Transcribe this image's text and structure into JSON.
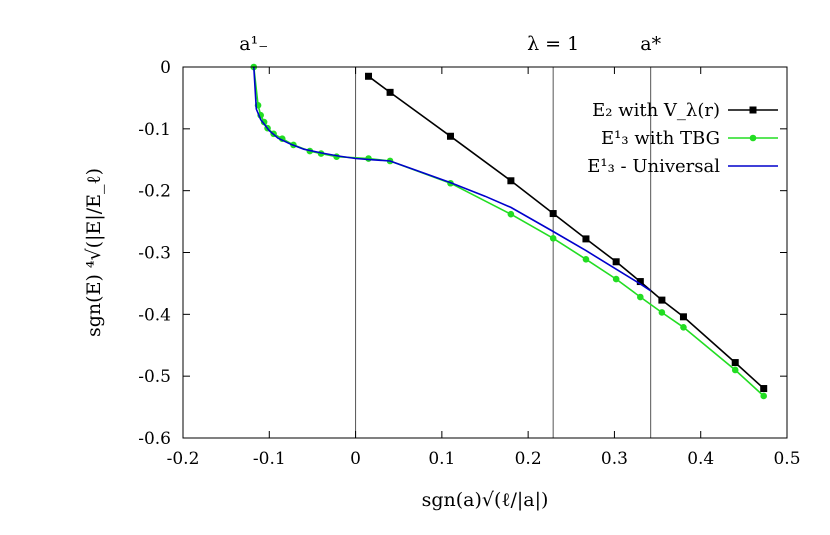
{
  "chart_data": {
    "type": "line",
    "xlabel": "sgn(a)√(ℓ/|a|)",
    "ylabel": "sgn(E) ⁴√(|E|/E_ℓ)",
    "xlim": [
      -0.2,
      0.5
    ],
    "ylim": [
      -0.6,
      0
    ],
    "x_ticks": [
      "-0.2",
      "-0.1",
      "0",
      "0.1",
      "0.2",
      "0.3",
      "0.4",
      "0.5"
    ],
    "y_ticks": [
      "0",
      "-0.1",
      "-0.2",
      "-0.3",
      "-0.4",
      "-0.5",
      "-0.6"
    ],
    "grid": false,
    "legend_position": "top-right",
    "vertical_markers": [
      {
        "x": 0,
        "label": ""
      },
      {
        "x": 0.229,
        "label": "λ = 1"
      },
      {
        "x": 0.342,
        "label": "a*"
      }
    ],
    "top_labels": [
      {
        "x": -0.118,
        "label": "a¹₋"
      }
    ],
    "series": [
      {
        "name": "E₂ with V_λ(r)",
        "color": "#000000",
        "marker": "square",
        "x": [
          0.015,
          0.04,
          0.11,
          0.18,
          0.229,
          0.267,
          0.302,
          0.33,
          0.355,
          0.38,
          0.44,
          0.473
        ],
        "y": [
          -0.015,
          -0.041,
          -0.112,
          -0.184,
          -0.237,
          -0.278,
          -0.315,
          -0.347,
          -0.377,
          -0.404,
          -0.478,
          -0.52
        ]
      },
      {
        "name": "E¹₃ with TBG",
        "color": "#22dd22",
        "marker": "circle",
        "x": [
          -0.118,
          -0.113,
          -0.11,
          -0.106,
          -0.102,
          -0.095,
          -0.085,
          -0.072,
          -0.053,
          -0.04,
          -0.022,
          0.015,
          0.04,
          0.11,
          0.18,
          0.229,
          0.267,
          0.302,
          0.33,
          0.355,
          0.38,
          0.44,
          0.473
        ],
        "y": [
          0.0,
          -0.062,
          -0.078,
          -0.089,
          -0.099,
          -0.108,
          -0.116,
          -0.126,
          -0.136,
          -0.14,
          -0.145,
          -0.148,
          -0.152,
          -0.188,
          -0.238,
          -0.277,
          -0.311,
          -0.343,
          -0.372,
          -0.397,
          -0.421,
          -0.49,
          -0.532
        ]
      },
      {
        "name": "E¹₃ - Universal",
        "color": "#0000cc",
        "marker": "none",
        "x": [
          -0.118,
          -0.115,
          -0.11,
          -0.1,
          -0.09,
          -0.075,
          -0.06,
          -0.04,
          -0.02,
          0.0,
          0.02,
          0.04,
          0.07,
          0.11,
          0.15,
          0.18,
          0.229,
          0.267,
          0.302,
          0.33,
          0.342
        ],
        "y": [
          0.0,
          -0.068,
          -0.085,
          -0.103,
          -0.115,
          -0.125,
          -0.133,
          -0.139,
          -0.144,
          -0.148,
          -0.15,
          -0.152,
          -0.167,
          -0.187,
          -0.209,
          -0.227,
          -0.266,
          -0.297,
          -0.327,
          -0.351,
          -0.362
        ]
      }
    ]
  }
}
